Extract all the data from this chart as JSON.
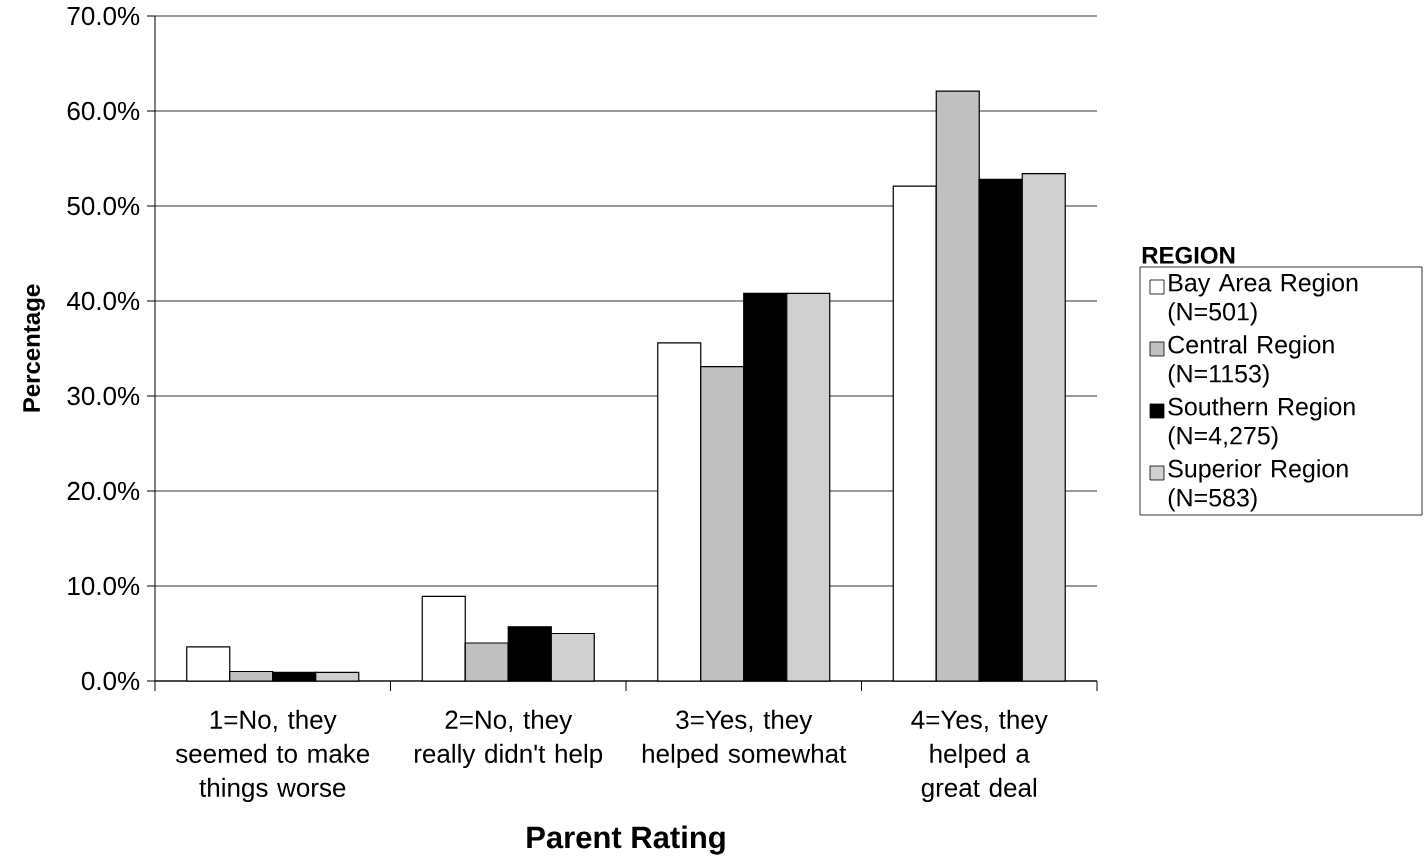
{
  "chart_data": {
    "type": "bar",
    "xlabel": "Parent Rating",
    "ylabel": "Percentage",
    "legend_title": "REGION",
    "categories": [
      "1=No, they seemed to make things worse",
      "2=No, they really didn't help",
      "3=Yes, they helped somewhat",
      "4=Yes, they helped a great deal"
    ],
    "series": [
      {
        "name": "Bay Area Region (N=501)",
        "color": "#ffffff",
        "values": [
          3.6,
          8.9,
          35.6,
          52.1
        ]
      },
      {
        "name": "Central Region (N=1153)",
        "color": "#c0c0c0",
        "values": [
          1.0,
          4.0,
          33.1,
          62.1
        ]
      },
      {
        "name": "Southern Region (N=4,275)",
        "color": "#000000",
        "values": [
          0.9,
          5.7,
          40.8,
          52.8
        ]
      },
      {
        "name": "Superior Region (N=583)",
        "color": "#d0d0d0",
        "values": [
          0.9,
          5.0,
          40.8,
          53.4
        ]
      }
    ],
    "ylim": [
      0,
      70
    ],
    "yticks": [
      {
        "value": 0,
        "label": "0.0%"
      },
      {
        "value": 10,
        "label": "10.0%"
      },
      {
        "value": 20,
        "label": "20.0%"
      },
      {
        "value": 30,
        "label": "30.0%"
      },
      {
        "value": 40,
        "label": "40.0%"
      },
      {
        "value": 50,
        "label": "50.0%"
      },
      {
        "value": 60,
        "label": "60.0%"
      },
      {
        "value": 70,
        "label": "70.0%"
      }
    ],
    "grid": "y",
    "legend": "right"
  }
}
